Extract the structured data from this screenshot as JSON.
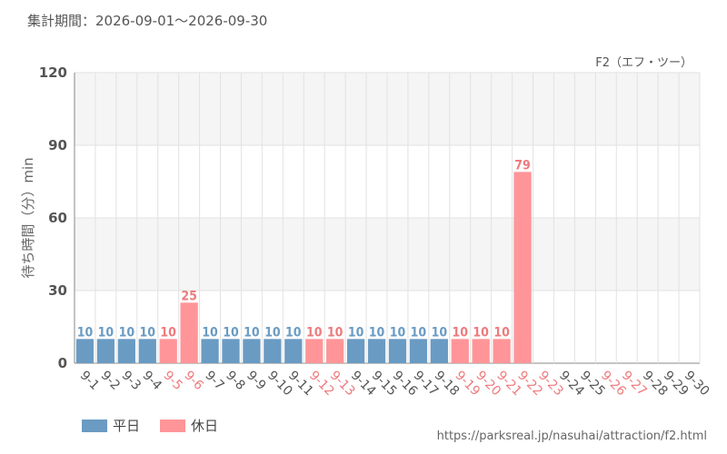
{
  "header": {
    "period": "集計期間：2026-09-01～2026-09-30"
  },
  "colors": {
    "weekday": "#6a9bc3",
    "holiday": "#ff9598",
    "holiday_text": "#ee7a7d",
    "band": "#f5f5f5",
    "grid": "#e2e2e2",
    "axis": "#888888"
  },
  "legend": {
    "weekday": "平日",
    "holiday": "休日"
  },
  "source": "https://parksreal.jp/nasuhai/attraction/f2.html",
  "chart_data": {
    "type": "bar",
    "title": "F2（エフ・ツー）",
    "ylabel": "待ち時間（分）min",
    "ylim": [
      0,
      120
    ],
    "yticks": [
      0,
      30,
      60,
      90,
      120
    ],
    "categories": [
      "9-1",
      "9-2",
      "9-3",
      "9-4",
      "9-5",
      "9-6",
      "9-7",
      "9-8",
      "9-9",
      "9-10",
      "9-11",
      "9-12",
      "9-13",
      "9-14",
      "9-15",
      "9-16",
      "9-17",
      "9-18",
      "9-19",
      "9-20",
      "9-21",
      "9-22",
      "9-23",
      "9-24",
      "9-25",
      "9-26",
      "9-27",
      "9-28",
      "9-29",
      "9-30"
    ],
    "day_types": [
      "weekday",
      "weekday",
      "weekday",
      "weekday",
      "holiday",
      "holiday",
      "weekday",
      "weekday",
      "weekday",
      "weekday",
      "weekday",
      "holiday",
      "holiday",
      "weekday",
      "weekday",
      "weekday",
      "weekday",
      "weekday",
      "holiday",
      "holiday",
      "holiday",
      "holiday",
      "holiday",
      "weekday",
      "weekday",
      "holiday",
      "holiday",
      "weekday",
      "weekday",
      "weekday"
    ],
    "values": [
      10,
      10,
      10,
      10,
      10,
      25,
      10,
      10,
      10,
      10,
      10,
      10,
      10,
      10,
      10,
      10,
      10,
      10,
      10,
      10,
      10,
      79,
      null,
      null,
      null,
      null,
      null,
      null,
      null,
      null
    ]
  }
}
